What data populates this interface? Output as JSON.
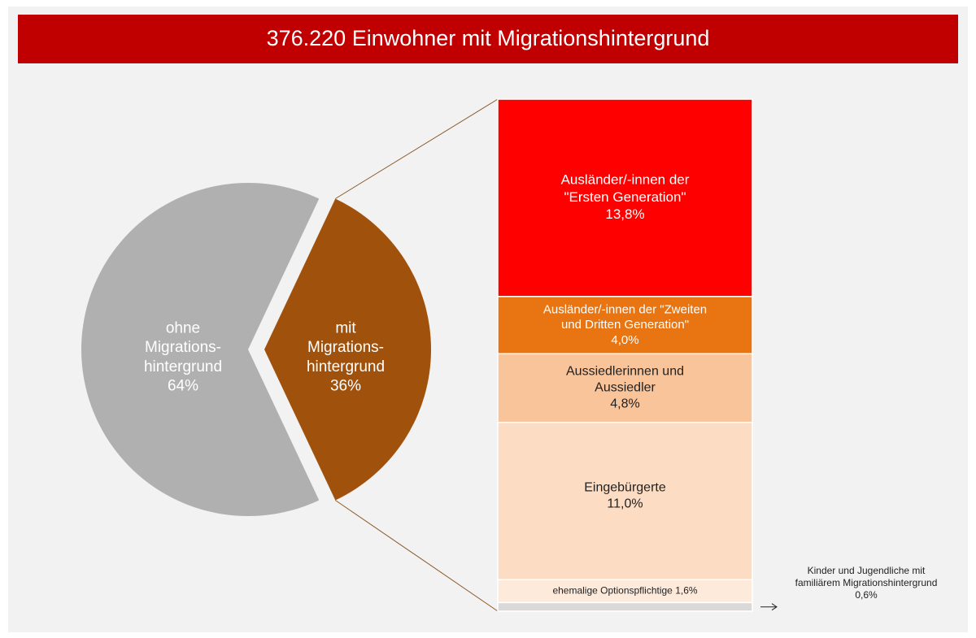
{
  "chart_data": {
    "type": "pie-of-bar",
    "title": "376.220 Einwohner mit Migrationshintergrund",
    "pie": {
      "labels": [
        [
          "ohne",
          "Migrations-",
          "hintergrund"
        ],
        [
          "mit",
          "Migrations-",
          "hintergrund"
        ]
      ],
      "values": [
        64,
        36
      ],
      "value_labels": [
        "64%",
        "36%"
      ],
      "colors": [
        "#b0b0b0",
        "#a0520c"
      ]
    },
    "bar": {
      "labels": [
        [
          "Ausländer/-innen der",
          "\"Ersten Generation\""
        ],
        [
          "Ausländer/-innen der \"Zweiten",
          "und Dritten Generation\""
        ],
        [
          "Aussiedlerinnen und",
          "Aussiedler"
        ],
        [
          "Eingebürgerte"
        ],
        [
          "ehemalige Optionspflichtige"
        ],
        [
          "Kinder und Jugendliche mit",
          "familiärem Migrationshintergrund"
        ]
      ],
      "values": [
        13.8,
        4.0,
        4.8,
        11.0,
        1.6,
        0.6
      ],
      "value_labels": [
        "13,8%",
        "4,0%",
        "4,8%",
        "11,0%",
        "1,6%",
        "0,6%"
      ],
      "colors": [
        "#ff0000",
        "#e87511",
        "#f9c49a",
        "#fcdcc2",
        "#fdeadb",
        "#d9d9d9"
      ]
    }
  }
}
